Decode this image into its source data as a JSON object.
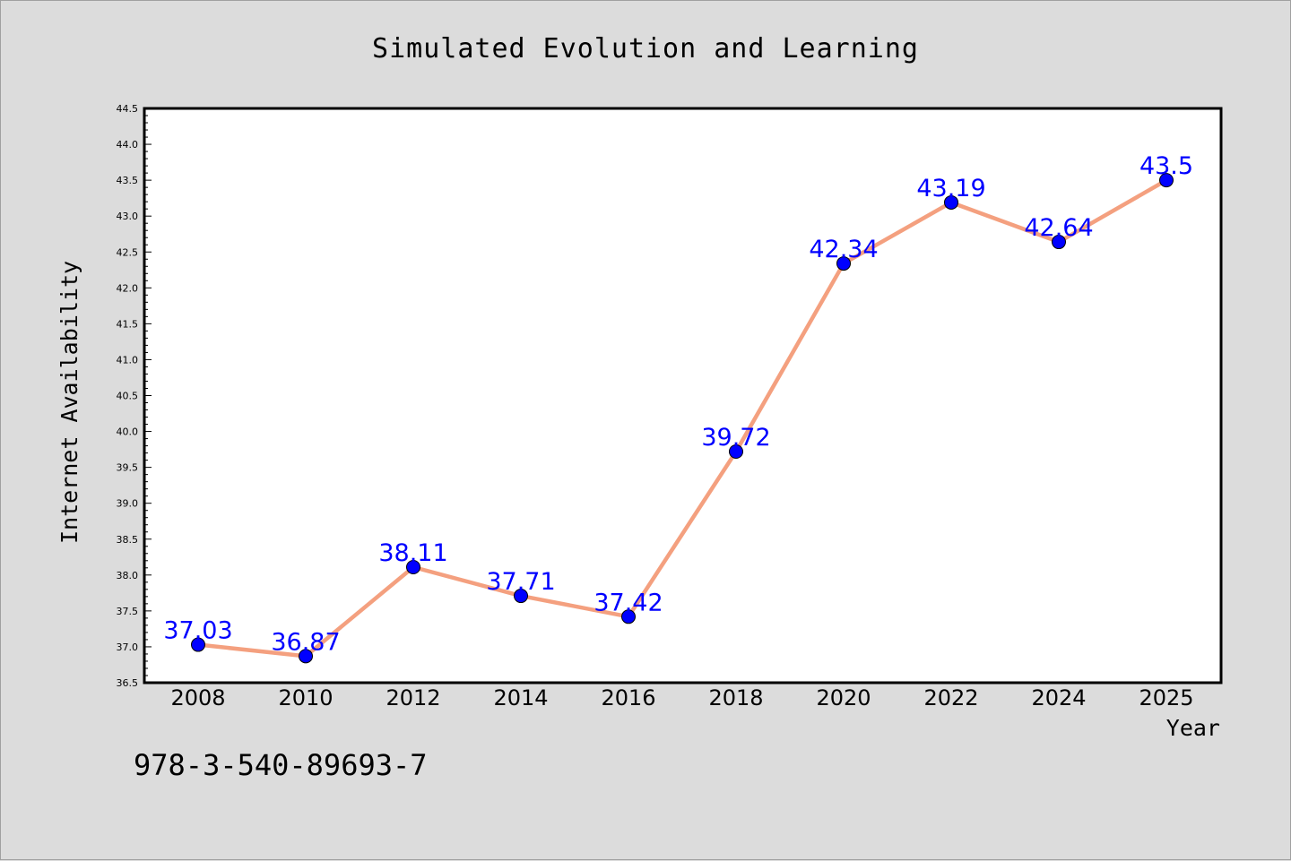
{
  "chart_data": {
    "type": "line",
    "title": "Simulated Evolution and Learning",
    "xlabel": "Year",
    "ylabel": "Internet Availability",
    "x": [
      "2008",
      "2010",
      "2012",
      "2014",
      "2016",
      "2018",
      "2020",
      "2022",
      "2024",
      "2025"
    ],
    "series": [
      {
        "values": [
          37.03,
          36.87,
          38.11,
          37.71,
          37.42,
          39.72,
          42.34,
          43.19,
          42.64,
          43.5
        ],
        "data_labels": [
          "37.03",
          "36.87",
          "38.11",
          "37.71",
          "37.42",
          "39.72",
          "42.34",
          "43.19",
          "42.64",
          "43.5"
        ],
        "line_color": "#f4a07f",
        "marker_color": "#0000ff",
        "label_color": "#0000ff"
      }
    ],
    "ylim": [
      36.5,
      44.5
    ],
    "yticks": [
      "36.5",
      "37.0",
      "37.5",
      "38.0",
      "38.5",
      "39.0",
      "39.5",
      "40.0",
      "40.5",
      "41.0",
      "41.5",
      "42.0",
      "42.5",
      "43.0",
      "43.5",
      "44.0",
      "44.5"
    ],
    "grid": false,
    "legend": "none",
    "background_color": "#dcdcdc",
    "plot_background_color": "#ffffff"
  },
  "footnote": "978-3-540-89693-7"
}
